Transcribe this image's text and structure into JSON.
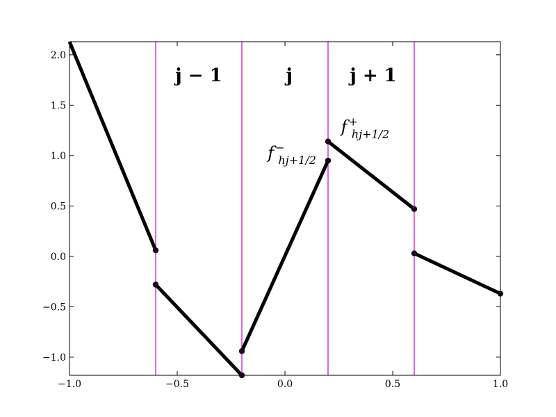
{
  "chart_data": {
    "type": "line",
    "title": "",
    "xlabel": "",
    "ylabel": "",
    "xlim": [
      -1.0,
      1.0
    ],
    "ylim": [
      -1.18,
      2.13
    ],
    "grid": false,
    "x_ticks": [
      -1.0,
      -0.5,
      0.0,
      0.5,
      1.0
    ],
    "x_tick_labels": [
      "−1.0",
      "−0.5",
      "0.0",
      "0.5",
      "1.0"
    ],
    "y_ticks": [
      -1.0,
      -0.5,
      0.0,
      0.5,
      1.0,
      1.5,
      2.0
    ],
    "y_tick_labels": [
      "−1.0",
      "−0.5",
      "0.0",
      "0.5",
      "1.0",
      "1.5",
      "2.0"
    ],
    "cell_boundaries": [
      -0.6,
      -0.2,
      0.2,
      0.6
    ],
    "boundary_color": "#cc00cc",
    "line_color": "#000000",
    "marker_color": "#1a0a1a",
    "segments": [
      {
        "x": [
          -1.0,
          -0.6
        ],
        "y": [
          2.13,
          0.06
        ],
        "markers": [
          false,
          true
        ]
      },
      {
        "x": [
          -0.6,
          -0.2
        ],
        "y": [
          -0.28,
          -1.18
        ],
        "markers": [
          true,
          true
        ]
      },
      {
        "x": [
          -0.2,
          0.2
        ],
        "y": [
          -0.94,
          0.95
        ],
        "markers": [
          true,
          true
        ]
      },
      {
        "x": [
          0.2,
          0.6
        ],
        "y": [
          1.14,
          0.47
        ],
        "markers": [
          true,
          true
        ]
      },
      {
        "x": [
          0.6,
          1.0
        ],
        "y": [
          0.03,
          -0.37
        ],
        "markers": [
          true,
          true
        ]
      }
    ],
    "region_labels": [
      {
        "text": "j − 1",
        "x": -0.4,
        "y": 1.8
      },
      {
        "text": "j",
        "x": 0.02,
        "y": 1.8
      },
      {
        "text": "j + 1",
        "x": 0.41,
        "y": 1.8
      }
    ],
    "annotations": [
      {
        "base": "f",
        "sup": "−",
        "sub": "hj+1/2",
        "x": -0.08,
        "y": 0.97
      },
      {
        "base": "f",
        "sup": "+",
        "sub": "hj+1/2",
        "x": 0.26,
        "y": 1.23
      }
    ]
  }
}
